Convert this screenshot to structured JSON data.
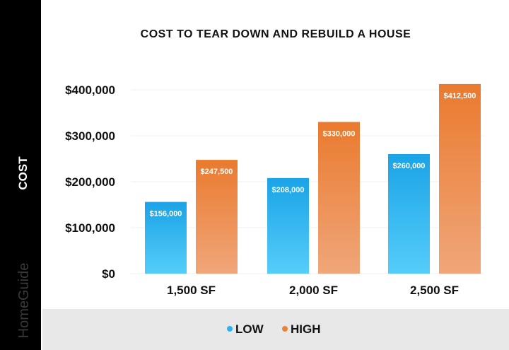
{
  "brand": "HomeGuide",
  "chart_data": {
    "type": "bar",
    "title": "COST TO TEAR DOWN AND REBUILD A HOUSE",
    "ylabel": "COST",
    "xlabel": "",
    "categories": [
      "1,500 SF",
      "2,000 SF",
      "2,500 SF"
    ],
    "series": [
      {
        "name": "LOW",
        "values": [
          156000,
          208000,
          260000
        ],
        "labels": [
          "$156,000",
          "$208,000",
          "$260,000"
        ],
        "color": "#29b2ee"
      },
      {
        "name": "HIGH",
        "values": [
          247500,
          330000,
          412500
        ],
        "labels": [
          "$247,500",
          "$330,000",
          "$412,500"
        ],
        "color": "#ec8238"
      }
    ],
    "yticks": [
      0,
      100000,
      200000,
      300000,
      400000
    ],
    "ytick_labels": [
      "$0",
      "$100,000",
      "$200,000",
      "$300,000",
      "$400,000"
    ],
    "ylim": [
      0,
      400000
    ],
    "grid": true,
    "legend_placement": "bottom"
  }
}
